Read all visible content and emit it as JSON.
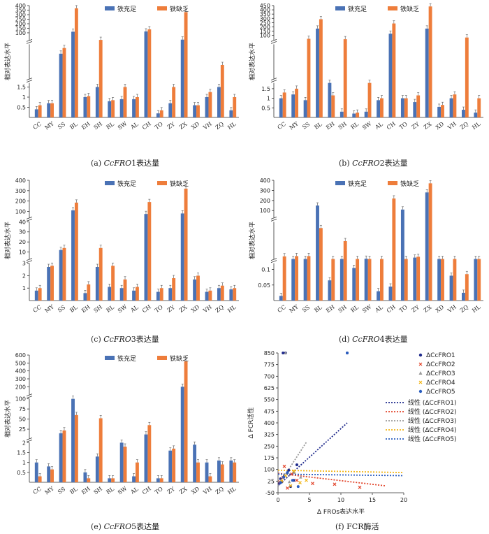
{
  "colors": {
    "sufficient": "#4a72b5",
    "deficient": "#ee7d3b",
    "fro1": "#1f2a8c",
    "fro2": "#e2452b",
    "fro3": "#9a9a9a",
    "fro4": "#f2b516",
    "fro5": "#2a5dbf"
  },
  "legend": {
    "sufficient": "铁充足",
    "deficient": "铁缺乏"
  },
  "ylabel": "相对表达水平",
  "captions": [
    {
      "prefix": "(a) ",
      "gene": "CcFRO",
      "suffix": "1表达量"
    },
    {
      "prefix": "(b) ",
      "gene": "CcFRO",
      "suffix": "2表达量"
    },
    {
      "prefix": "(c) ",
      "gene": "CcFRO",
      "suffix": "3表达量"
    },
    {
      "prefix": "(d) ",
      "gene": "CcFRO",
      "suffix": "4表达量"
    },
    {
      "prefix": "(e) ",
      "gene": "CcFRO",
      "suffix": "5表达量"
    },
    {
      "prefix": "(f) ",
      "gene": "",
      "suffix": "FCR酶活"
    }
  ],
  "chart_data": [
    {
      "type": "bar",
      "panel": "a",
      "categories": [
        "CC",
        "MY",
        "SS",
        "BL",
        "EH",
        "SH",
        "RL",
        "SW",
        "AL",
        "CH",
        "TO",
        "ZY",
        "ZX",
        "XD",
        "VH",
        "ZQ",
        "HL"
      ],
      "segments": [
        [
          0,
          1.7,
          [
            0.5,
            1,
            1.5
          ]
        ],
        [
          1.7,
          20,
          []
        ],
        [
          20,
          400,
          [
            100,
            150,
            200,
            250,
            300,
            350,
            400
          ]
        ]
      ],
      "series": [
        {
          "name": "铁充足",
          "values": [
            0.4,
            0.7,
            15,
            112,
            1.0,
            1.5,
            0.8,
            0.9,
            0.9,
            115,
            0.2,
            0.7,
            25,
            0.6,
            1.0,
            1.5,
            0.35
          ]
        },
        {
          "name": "铁缺乏",
          "values": [
            0.6,
            0.7,
            18,
            370,
            1.05,
            22,
            0.85,
            1.5,
            1.0,
            138,
            0.35,
            1.5,
            328,
            0.6,
            1.25,
            9,
            1.0
          ]
        }
      ]
    },
    {
      "type": "bar",
      "panel": "b",
      "categories": [
        "CC",
        "MY",
        "SS",
        "BL",
        "EH",
        "SH",
        "RL",
        "SW",
        "AL",
        "CH",
        "TO",
        "ZY",
        "ZX",
        "XD",
        "VH",
        "ZQ",
        "HL"
      ],
      "segments": [
        [
          0,
          1.8,
          [
            0.5,
            1,
            1.5
          ]
        ],
        [
          1.8,
          45,
          []
        ],
        [
          45,
          450,
          [
            100,
            150,
            200,
            250,
            300,
            350,
            400,
            450
          ]
        ]
      ],
      "series": [
        {
          "name": "铁充足",
          "values": [
            1.0,
            1.2,
            0.9,
            180,
            1.8,
            0.3,
            0.2,
            0.3,
            0.9,
            120,
            1.0,
            0.8,
            180,
            0.55,
            1.0,
            0.4,
            0.25
          ]
        },
        {
          "name": "铁缺乏",
          "values": [
            1.3,
            1.5,
            60,
            290,
            1.15,
            55,
            0.25,
            1.8,
            1.0,
            240,
            1.0,
            1.15,
            440,
            0.65,
            1.2,
            75,
            1.0
          ]
        }
      ]
    },
    {
      "type": "bar",
      "panel": "c",
      "categories": [
        "CC",
        "MY",
        "SS",
        "BL",
        "EH",
        "SH",
        "RL",
        "SW",
        "AL",
        "CH",
        "TO",
        "ZY",
        "ZX",
        "XD",
        "VH",
        "ZQ",
        "HL"
      ],
      "segments": [
        [
          0,
          3,
          [
            1,
            2,
            3
          ]
        ],
        [
          3,
          40,
          [
            10,
            20,
            30,
            40
          ]
        ],
        [
          40,
          400,
          [
            100,
            200,
            300,
            400
          ]
        ]
      ],
      "series": [
        {
          "name": "铁充足",
          "values": [
            0.8,
            2.7,
            12,
            110,
            0.6,
            2.7,
            1.1,
            1.0,
            0.8,
            75,
            0.7,
            1.0,
            80,
            1.7,
            0.7,
            1.0,
            0.9
          ]
        },
        {
          "name": "铁缺乏",
          "values": [
            1.0,
            2.8,
            14,
            185,
            1.3,
            14,
            2.8,
            1.7,
            1.1,
            190,
            1.0,
            1.8,
            320,
            2.0,
            0.8,
            1.2,
            1.0
          ]
        }
      ]
    },
    {
      "type": "bar",
      "panel": "d",
      "categories": [
        "CC",
        "MY",
        "SS",
        "BL",
        "EH",
        "SH",
        "RL",
        "SW",
        "AL",
        "CH",
        "TO",
        "ZY",
        "ZX",
        "XD",
        "VH",
        "ZQ",
        "HL"
      ],
      "segments": [
        [
          0,
          0.12,
          [
            0.05,
            0.1
          ]
        ],
        [
          0.12,
          30,
          []
        ],
        [
          30,
          400,
          [
            100,
            200,
            300,
            400
          ]
        ]
      ],
      "series": [
        {
          "name": "铁充足",
          "values": [
            0.015,
            0.2,
            0.2,
            150,
            0.065,
            0.2,
            0.105,
            0.4,
            0.03,
            0.045,
            110,
            1.3,
            280,
            0.2,
            0.08,
            0.025,
            0.2
          ]
        },
        {
          "name": "铁缺乏",
          "values": [
            2.3,
            2.5,
            2.5,
            25,
            0.2,
            14.5,
            0.2,
            0.2,
            0.2,
            220,
            0.2,
            2.0,
            370,
            0.2,
            0.2,
            0.085,
            0.2
          ]
        }
      ]
    },
    {
      "type": "bar",
      "panel": "e",
      "categories": [
        "CC",
        "MY",
        "SS",
        "BL",
        "EH",
        "SH",
        "RL",
        "SW",
        "AL",
        "CH",
        "TO",
        "ZY",
        "ZX",
        "XD",
        "VH",
        "ZQ",
        "HL"
      ],
      "segments": [
        [
          0,
          2,
          [
            0.5,
            1,
            1.5,
            2
          ]
        ],
        [
          2,
          100,
          [
            25,
            50,
            75,
            100
          ]
        ],
        [
          100,
          600,
          [
            200,
            300,
            400,
            500,
            600
          ]
        ]
      ],
      "series": [
        {
          "name": "铁充足",
          "values": [
            1.0,
            0.8,
            15,
            100,
            0.5,
            1.3,
            0.2,
            2.0,
            0.3,
            12,
            0.2,
            1.6,
            200,
            1.9,
            1.0,
            1.1,
            1.1
          ]
        },
        {
          "name": "铁缺乏",
          "values": [
            0.3,
            0.65,
            22,
            60,
            0.2,
            52,
            0.2,
            1.8,
            1.0,
            35,
            0.2,
            1.7,
            520,
            1.0,
            0.3,
            0.9,
            1.0
          ]
        }
      ]
    },
    {
      "type": "scatter",
      "panel": "f",
      "xlabel": "Δ FROs表达水平",
      "ylabel": "Δ FCR活性",
      "xlim": [
        0,
        20
      ],
      "ylim": [
        -50,
        850
      ],
      "xticks": [
        0,
        5,
        10,
        15,
        20
      ],
      "yticks": [
        -50,
        25,
        100,
        175,
        250,
        325,
        400,
        475,
        550,
        625,
        700,
        775,
        850
      ],
      "series": [
        {
          "name": "ΔCcFRO1",
          "marker": "circle",
          "x": [
            0.2,
            0.4,
            0.6,
            1.0,
            1.5,
            2.0,
            3.0,
            0.8,
            1.2,
            11.0,
            2.5,
            1.7
          ],
          "y": [
            10,
            40,
            20,
            60,
            80,
            -10,
            130,
            850,
            850,
            850,
            30,
            95
          ]
        },
        {
          "name": "ΔCcFRO2",
          "marker": "x",
          "x": [
            0.3,
            0.8,
            1.5,
            2.2,
            3.0,
            5.5,
            9.0,
            13.0,
            1.0
          ],
          "y": [
            20,
            50,
            -20,
            70,
            30,
            10,
            5,
            -15,
            120
          ]
        },
        {
          "name": "ΔCcFRO3",
          "marker": "triangle",
          "x": [
            0.5,
            1.0,
            1.8,
            2.6,
            3.6,
            1.2
          ],
          "y": [
            30,
            60,
            20,
            80,
            50,
            850
          ]
        },
        {
          "name": "ΔCcFRO4",
          "marker": "x",
          "x": [
            0.6,
            1.2,
            2.0,
            2.5,
            3.5,
            4.5
          ],
          "y": [
            25,
            60,
            -5,
            90,
            15,
            30
          ]
        },
        {
          "name": "ΔCcFRO5",
          "marker": "circle",
          "x": [
            0.4,
            0.9,
            1.5,
            2.3,
            3.2,
            11.0
          ],
          "y": [
            15,
            50,
            80,
            30,
            -10,
            850
          ]
        }
      ],
      "trendlines": [
        {
          "name": "线性 (ΔCcFRO1)",
          "x": [
            0,
            11
          ],
          "y": [
            -5,
            400
          ]
        },
        {
          "name": "线性 (ΔCcFRO2)",
          "x": [
            0,
            17
          ],
          "y": [
            75,
            -5
          ]
        },
        {
          "name": "线性 (ΔCcFRO3)",
          "x": [
            0,
            4.5
          ],
          "y": [
            -5,
            275
          ]
        },
        {
          "name": "线性 (ΔCcFRO4)",
          "x": [
            0,
            20
          ],
          "y": [
            95,
            80
          ]
        },
        {
          "name": "线性 (ΔCcFRO5)",
          "x": [
            0,
            20
          ],
          "y": [
            70,
            60
          ]
        }
      ]
    }
  ]
}
